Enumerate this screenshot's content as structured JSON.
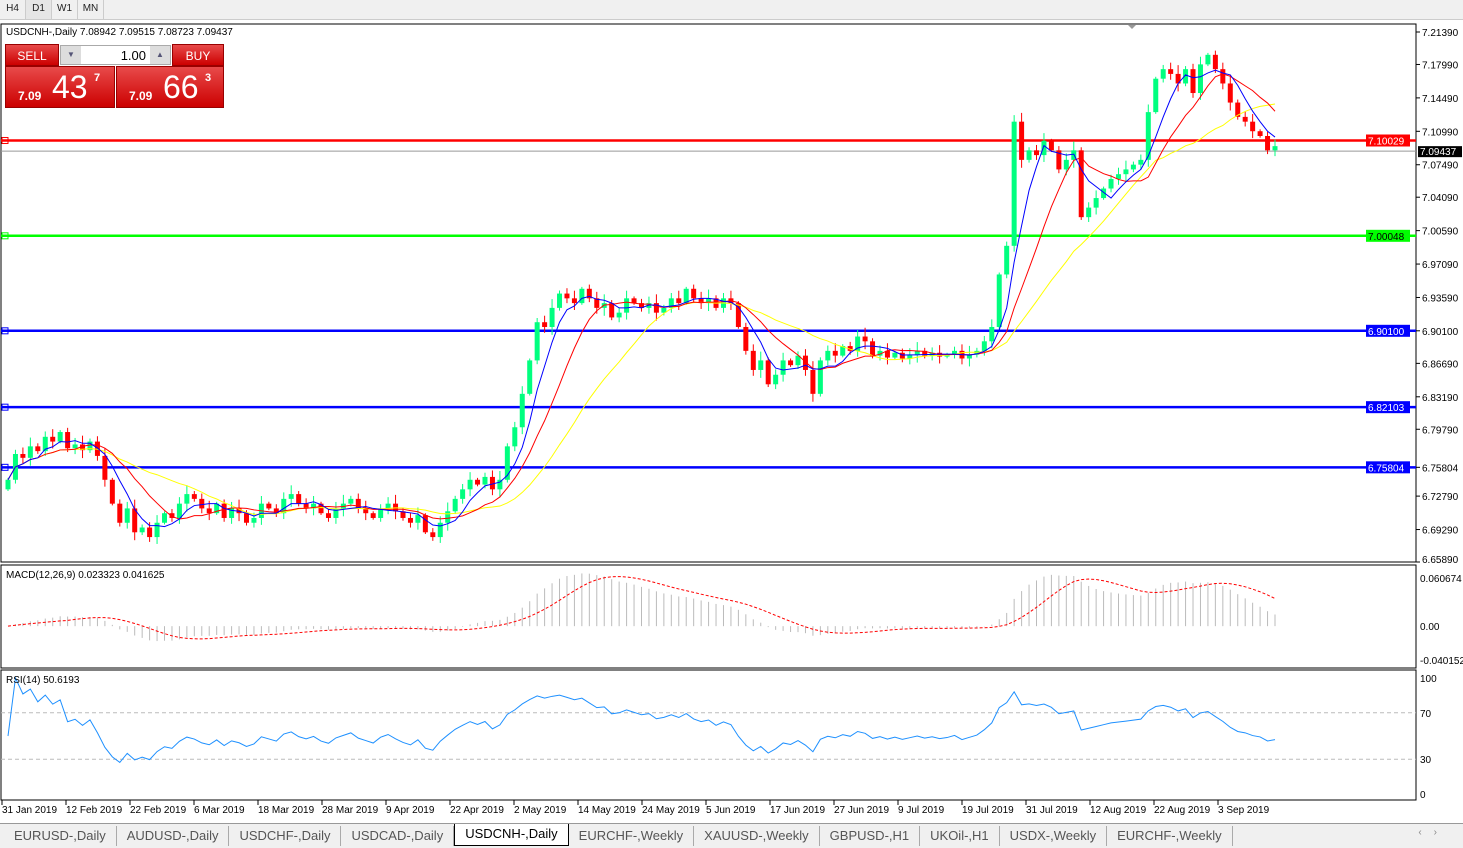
{
  "timeframes": [
    "H4",
    "D1",
    "W1",
    "MN"
  ],
  "active_timeframe": "D1",
  "chart": {
    "title": "USDCNH-,Daily  7.08942 7.09515 7.08723 7.09437",
    "trade_panel": {
      "sell_label": "SELL",
      "buy_label": "BUY",
      "lot": "1.00",
      "sell_price": {
        "prefix": "7.09",
        "big": "43",
        "sup": "7"
      },
      "buy_price": {
        "prefix": "7.09",
        "big": "66",
        "sup": "3"
      }
    },
    "price_axis": [
      "7.21390",
      "7.17990",
      "7.14490",
      "7.10990",
      "7.07490",
      "7.04090",
      "7.00590",
      "6.97090",
      "6.93590",
      "6.90100",
      "6.86690",
      "6.83190",
      "6.79790",
      "6.75804",
      "6.72790",
      "6.69290",
      "6.65890"
    ],
    "price_range": [
      6.6589,
      7.2139
    ],
    "current_price": "7.09437",
    "levels": [
      {
        "value": "7.10029",
        "color": "#ff0000"
      },
      {
        "value": "7.00048",
        "color": "#00ff00"
      },
      {
        "value": "6.90100",
        "color": "#0000ff"
      },
      {
        "value": "6.82103",
        "color": "#0000ff"
      },
      {
        "value": "6.75804",
        "color": "#0000ff"
      }
    ],
    "colors": {
      "bull": "#00ff7f",
      "bear": "#ff0000",
      "ma_fast": "#0000ff",
      "ma_mid": "#ff0000",
      "ma_slow": "#ffff00"
    },
    "closes": [
      6.745,
      6.772,
      6.768,
      6.78,
      6.775,
      6.79,
      6.785,
      6.795,
      6.778,
      6.782,
      6.776,
      6.785,
      6.77,
      6.745,
      6.72,
      6.7,
      6.715,
      6.69,
      6.695,
      6.685,
      6.7,
      6.71,
      6.705,
      6.72,
      6.73,
      6.725,
      6.715,
      6.71,
      6.72,
      6.705,
      6.715,
      6.71,
      6.7,
      6.705,
      6.72,
      6.715,
      6.71,
      6.725,
      6.73,
      6.72,
      6.715,
      6.72,
      6.71,
      6.705,
      6.715,
      6.72,
      6.725,
      6.715,
      6.71,
      6.705,
      6.715,
      6.72,
      6.712,
      6.705,
      6.7,
      6.708,
      6.69,
      6.685,
      6.7,
      6.712,
      6.725,
      6.735,
      6.745,
      6.74,
      6.748,
      6.735,
      6.745,
      6.78,
      6.8,
      6.835,
      6.87,
      6.91,
      6.905,
      6.925,
      6.94,
      6.935,
      6.93,
      6.945,
      6.935,
      6.925,
      6.93,
      6.915,
      6.92,
      6.935,
      6.93,
      6.925,
      6.93,
      6.92,
      6.925,
      6.935,
      6.93,
      6.945,
      6.935,
      6.93,
      6.935,
      6.925,
      6.935,
      6.93,
      6.905,
      6.88,
      6.86,
      6.87,
      6.845,
      6.855,
      6.87,
      6.865,
      6.875,
      6.86,
      6.835,
      6.87,
      6.88,
      6.875,
      6.885,
      6.88,
      6.895,
      6.89,
      6.875,
      6.88,
      6.873,
      6.878,
      6.872,
      6.876,
      6.88,
      6.875,
      6.878,
      6.874,
      6.876,
      6.88,
      6.872,
      6.876,
      6.88,
      6.89,
      6.905,
      6.96,
      6.99,
      7.12,
      7.08,
      7.09,
      7.085,
      7.1,
      7.09,
      7.07,
      7.08,
      7.09,
      7.02,
      7.03,
      7.04,
      7.05,
      7.06,
      7.065,
      7.07,
      7.075,
      7.08,
      7.13,
      7.165,
      7.175,
      7.17,
      7.16,
      7.175,
      7.15,
      7.18,
      7.19,
      7.175,
      7.16,
      7.14,
      7.125,
      7.12,
      7.11,
      7.105,
      7.09,
      7.09437
    ],
    "macd": {
      "label": "MACD(12,26,9) 0.023323 0.041625",
      "axis": [
        "0.060674",
        "0.00",
        "-0.040152"
      ]
    },
    "rsi": {
      "label": "RSI(14) 50.6193",
      "axis": [
        "100",
        "70",
        "30",
        "0"
      ]
    },
    "dates": [
      "31 Jan 2019",
      "12 Feb 2019",
      "22 Feb 2019",
      "6 Mar 2019",
      "18 Mar 2019",
      "28 Mar 2019",
      "9 Apr 2019",
      "22 Apr 2019",
      "2 May 2019",
      "14 May 2019",
      "24 May 2019",
      "5 Jun 2019",
      "17 Jun 2019",
      "27 Jun 2019",
      "9 Jul 2019",
      "19 Jul 2019",
      "31 Jul 2019",
      "12 Aug 2019",
      "22 Aug 2019",
      "3 Sep 2019"
    ]
  },
  "tabs": [
    "EURUSD-,Daily",
    "AUDUSD-,Daily",
    "USDCHF-,Daily",
    "USDCAD-,Daily",
    "USDCNH-,Daily",
    "EURCHF-,Weekly",
    "XAUUSD-,Weekly",
    "GBPUSD-,H1",
    "UKOil-,H1",
    "USDX-,Weekly",
    "EURCHF-,Weekly"
  ],
  "active_tab": "USDCNH-,Daily"
}
